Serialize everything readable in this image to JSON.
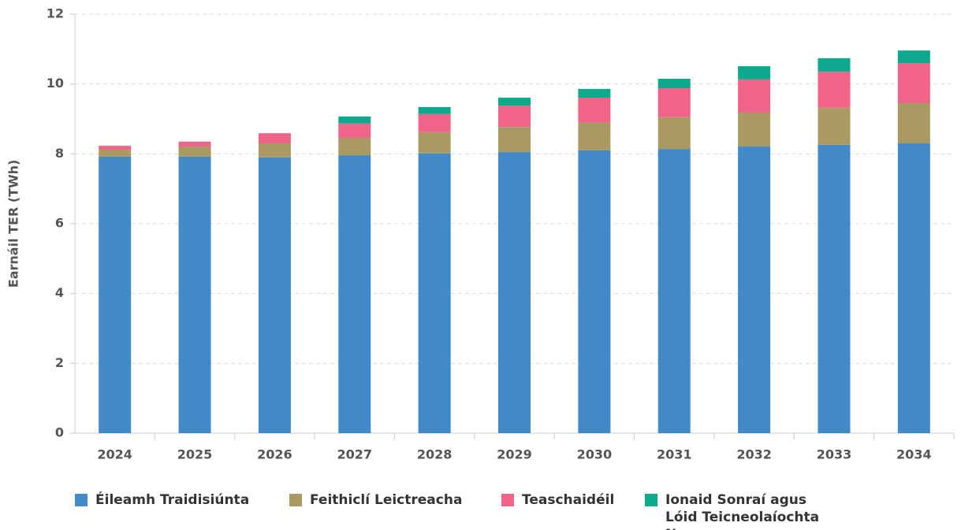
{
  "chart_data": {
    "type": "stacked_bar",
    "ylabel": "Earnáil TER (TWh)",
    "categories": [
      "2024",
      "2025",
      "2026",
      "2027",
      "2028",
      "2029",
      "2030",
      "2031",
      "2032",
      "2033",
      "2034"
    ],
    "series": [
      {
        "name": "Éileamh Traidisiúnta",
        "color": "#4289c8",
        "values": [
          7.92,
          7.92,
          7.9,
          7.96,
          8.01,
          8.05,
          8.1,
          8.14,
          8.21,
          8.26,
          8.3
        ]
      },
      {
        "name": "Feithiclí Leictreacha",
        "color": "#a99a63",
        "values": [
          0.2,
          0.29,
          0.4,
          0.5,
          0.61,
          0.72,
          0.79,
          0.91,
          0.97,
          1.06,
          1.15
        ]
      },
      {
        "name": "Teaschaidéil",
        "color": "#f0648a",
        "values": [
          0.11,
          0.14,
          0.29,
          0.41,
          0.52,
          0.61,
          0.72,
          0.83,
          0.95,
          1.03,
          1.15
        ]
      },
      {
        "name": "Ionaid Sonraí agus Lóid Teicneolaíochta Nua",
        "color": "#0ca98c",
        "values": [
          0,
          0,
          0,
          0.2,
          0.2,
          0.23,
          0.25,
          0.27,
          0.38,
          0.39,
          0.36
        ]
      }
    ],
    "ylim": [
      0,
      12
    ],
    "yticks": [
      0,
      2,
      4,
      6,
      8,
      10,
      12
    ],
    "grid": true
  }
}
